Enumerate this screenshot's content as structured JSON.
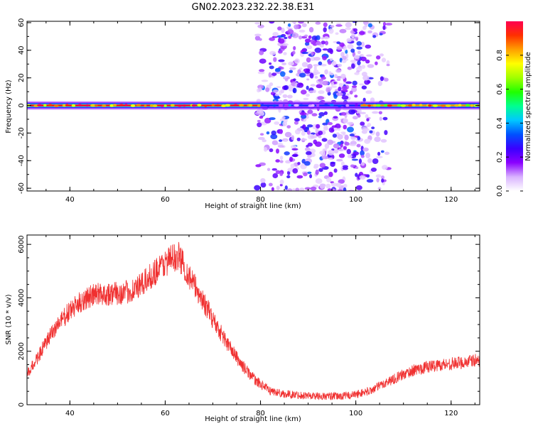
{
  "figure": {
    "title": "GN02.2023.232.22.38.E31"
  },
  "chart_data": [
    {
      "type": "heatmap",
      "title": "GN02.2023.232.22.38.E31",
      "xlabel": "Height of straight line (km)",
      "ylabel": "Frequency (Hz)",
      "xlim": [
        31,
        126
      ],
      "ylim": [
        -62,
        61
      ],
      "x_ticks": [
        40,
        60,
        80,
        100,
        120
      ],
      "y_ticks": [
        60,
        40,
        20,
        0,
        -20,
        -40,
        -60
      ],
      "colorbar": {
        "label": "Normalized spectral amplitude",
        "range": [
          0,
          1
        ],
        "ticks": [
          "0.0",
          "0.2",
          "0.4",
          "0.6",
          "0.8"
        ],
        "colormap": [
          "#ffffff",
          "#d9b3ff",
          "#8a00ff",
          "#3a00ff",
          "#0050ff",
          "#00c8ff",
          "#00ff90",
          "#20ff00",
          "#a0ff00",
          "#ffff00",
          "#ffa000",
          "#ff3000",
          "#ff0050"
        ]
      },
      "band": {
        "frequency_hz": 0,
        "segments": [
          {
            "x_range": [
              31,
              80
            ],
            "amplitude": 0.95
          },
          {
            "x_range": [
              80,
              101
            ],
            "amplitude": 0.3
          },
          {
            "x_range": [
              101,
              126
            ],
            "amplitude": 0.85
          }
        ]
      },
      "noise_region": {
        "x_range": [
          79,
          107
        ],
        "y_range": [
          -62,
          61
        ],
        "amplitude_range": [
          0.05,
          0.35
        ]
      }
    },
    {
      "type": "line",
      "xlabel": "Height of straight line (km)",
      "ylabel": "SNR (10 * v/v)",
      "xlim": [
        31,
        126
      ],
      "ylim": [
        0,
        6350
      ],
      "x_ticks": [
        40,
        60,
        80,
        100,
        120
      ],
      "y_ticks": [
        0,
        2000,
        4000,
        6000
      ],
      "color": "#f03030",
      "series": [
        {
          "x": [
            31,
            34,
            37,
            40,
            43,
            46,
            49,
            52,
            55,
            58,
            61,
            63,
            65,
            67,
            70,
            73,
            76,
            79,
            82,
            85,
            88,
            91,
            94,
            97,
            100,
            103,
            106,
            109,
            112,
            115,
            118,
            121,
            124,
            126
          ],
          "values": [
            1100,
            2000,
            2900,
            3500,
            3950,
            4150,
            4150,
            4200,
            4450,
            5000,
            5450,
            5550,
            4800,
            4200,
            3200,
            2300,
            1500,
            900,
            520,
            400,
            360,
            330,
            310,
            320,
            380,
            520,
            800,
            1050,
            1280,
            1420,
            1500,
            1550,
            1620,
            1680
          ]
        }
      ]
    }
  ]
}
